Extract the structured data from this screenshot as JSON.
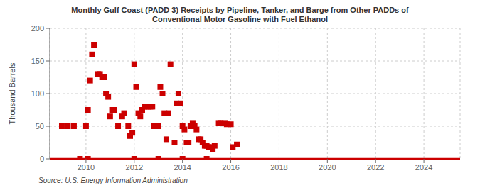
{
  "chart_data": {
    "type": "scatter",
    "title": "Monthly Gulf Coast (PADD 3) Receipts by Pipeline, Tanker, and Barge from Other PADDs of\nConventional Motor Gasoline with Fuel Ethanol",
    "y_label": "Thousand Barrels",
    "annotations": [
      "Source: U.S. Energy Information Administration"
    ],
    "color": "#cc0000",
    "marker": "square",
    "grid": true,
    "xlim": [
      2008.5,
      2025.5
    ],
    "ylim": [
      0,
      200
    ],
    "yticks": [
      0,
      50,
      100,
      150,
      200
    ],
    "xticks": [
      2010,
      2012,
      2014,
      2016,
      2018,
      2020,
      2022,
      2024
    ],
    "x": [
      2009.0,
      2009.25,
      2009.5,
      2010.0,
      2010.08,
      2010.17,
      2010.25,
      2010.33,
      2010.5,
      2010.58,
      2010.67,
      2010.75,
      2010.83,
      2010.92,
      2011.0,
      2011.08,
      2011.17,
      2011.33,
      2011.5,
      2011.58,
      2011.75,
      2011.83,
      2011.92,
      2012.0,
      2012.08,
      2012.17,
      2012.25,
      2012.33,
      2012.42,
      2012.5,
      2012.58,
      2012.67,
      2012.75,
      2012.83,
      2013.0,
      2013.08,
      2013.17,
      2013.25,
      2013.33,
      2013.42,
      2013.5,
      2013.67,
      2013.75,
      2013.83,
      2013.92,
      2014.0,
      2014.08,
      2014.17,
      2014.25,
      2014.33,
      2014.42,
      2014.5,
      2014.58,
      2014.67,
      2014.75,
      2014.83,
      2014.92,
      2015.0,
      2015.08,
      2015.17,
      2015.25,
      2015.33,
      2015.5,
      2015.58,
      2015.75,
      2015.83,
      2016.0,
      2016.08,
      2016.25,
      2009.75,
      2010.08,
      2012.0,
      2013.0,
      2014.0,
      2015.0
    ],
    "values": [
      50,
      50,
      50,
      50,
      75,
      120,
      160,
      175,
      130,
      130,
      125,
      125,
      100,
      95,
      65,
      75,
      75,
      50,
      65,
      70,
      50,
      35,
      40,
      145,
      110,
      70,
      65,
      75,
      80,
      80,
      80,
      80,
      80,
      50,
      50,
      110,
      100,
      70,
      30,
      70,
      145,
      25,
      85,
      100,
      85,
      50,
      45,
      25,
      25,
      50,
      55,
      50,
      45,
      30,
      30,
      25,
      20,
      20,
      18,
      18,
      15,
      20,
      55,
      55,
      55,
      53,
      53,
      18,
      22,
      0,
      0,
      0,
      0,
      0,
      0
    ]
  }
}
